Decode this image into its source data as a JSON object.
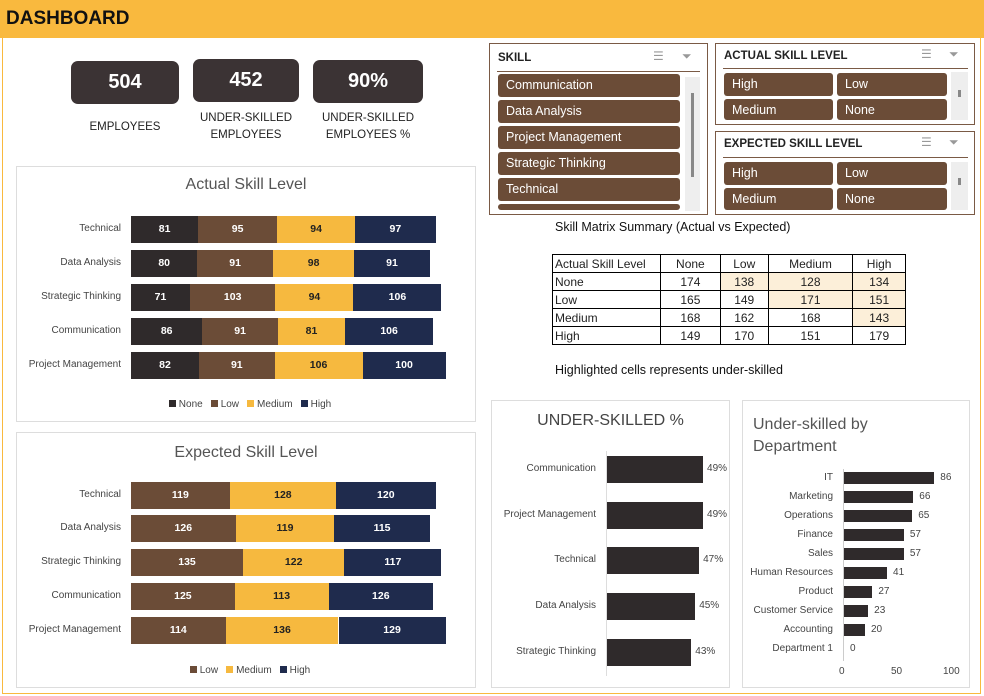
{
  "header": {
    "title": "DASHBOARD"
  },
  "kpis": [
    {
      "value": "504",
      "label": "EMPLOYEES"
    },
    {
      "value": "452",
      "label": "UNDER-SKILLED EMPLOYEES"
    },
    {
      "value": "90%",
      "label": "UNDER-SKILLED EMPLOYEES %"
    }
  ],
  "colors": {
    "None": "#2f2a2b",
    "Low": "#6b4c37",
    "Medium": "#f6b93f",
    "High": "#1f2b4d",
    "accent": "#f9b93e",
    "highlight": "#fcefd9"
  },
  "slicers": {
    "skill": {
      "title": "SKILL",
      "items": [
        "Communication",
        "Data Analysis",
        "Project Management",
        "Strategic Thinking",
        "Technical"
      ]
    },
    "actual": {
      "title": "ACTUAL SKILL LEVEL",
      "items": [
        "High",
        "Low",
        "Medium",
        "None"
      ]
    },
    "expected": {
      "title": "EXPECTED SKILL LEVEL",
      "items": [
        "High",
        "Low",
        "Medium",
        "None"
      ]
    },
    "icons": [
      "multi-select-icon",
      "clear-filter-icon"
    ]
  },
  "matrix": {
    "title": "Skill Matrix Summary (Actual vs Expected)",
    "headers": [
      "Actual Skill Level",
      "None",
      "Low",
      "Medium",
      "High"
    ],
    "rows": [
      [
        "None",
        "174",
        "138",
        "128",
        "134"
      ],
      [
        "Low",
        "165",
        "149",
        "171",
        "151"
      ],
      [
        "Medium",
        "168",
        "162",
        "168",
        "143"
      ],
      [
        "High",
        "149",
        "170",
        "151",
        "179"
      ]
    ],
    "highlighted": [
      [
        0,
        2
      ],
      [
        0,
        3
      ],
      [
        0,
        4
      ],
      [
        1,
        3
      ],
      [
        1,
        4
      ],
      [
        2,
        4
      ]
    ],
    "note": "Highlighted cells represents under-skilled"
  },
  "chart_data": [
    {
      "type": "bar",
      "stacked": true,
      "orientation": "horizontal",
      "title": "Actual Skill Level",
      "categories": [
        "Technical",
        "Data Analysis",
        "Strategic Thinking",
        "Communication",
        "Project Management"
      ],
      "series": [
        {
          "name": "None",
          "values": [
            81,
            80,
            71,
            86,
            82
          ]
        },
        {
          "name": "Low",
          "values": [
            95,
            91,
            103,
            91,
            91
          ]
        },
        {
          "name": "Medium",
          "values": [
            94,
            98,
            94,
            81,
            106
          ]
        },
        {
          "name": "High",
          "values": [
            97,
            91,
            106,
            106,
            100
          ]
        }
      ],
      "legend": "bottom"
    },
    {
      "type": "bar",
      "stacked": true,
      "orientation": "horizontal",
      "title": "Expected Skill Level",
      "categories": [
        "Technical",
        "Data Analysis",
        "Strategic Thinking",
        "Communication",
        "Project Management"
      ],
      "series": [
        {
          "name": "Low",
          "values": [
            119,
            126,
            135,
            125,
            114
          ]
        },
        {
          "name": "Medium",
          "values": [
            128,
            119,
            122,
            113,
            136
          ]
        },
        {
          "name": "High",
          "values": [
            120,
            115,
            117,
            126,
            129
          ]
        }
      ],
      "legend": "bottom"
    },
    {
      "type": "bar",
      "orientation": "horizontal",
      "title": "UNDER-SKILLED %",
      "categories": [
        "Communication",
        "Project Management",
        "Technical",
        "Data Analysis",
        "Strategic Thinking"
      ],
      "values": [
        49,
        49,
        47,
        45,
        43
      ],
      "labels": [
        "49%",
        "49%",
        "47%",
        "45%",
        "43%"
      ]
    },
    {
      "type": "bar",
      "orientation": "horizontal",
      "title": "Under-skilled by Department",
      "categories": [
        "IT",
        "Marketing",
        "Operations",
        "Finance",
        "Sales",
        "Human Resources",
        "Product",
        "Customer Service",
        "Accounting",
        "Department 1"
      ],
      "values": [
        86,
        66,
        65,
        57,
        57,
        41,
        27,
        23,
        20,
        0
      ],
      "xlim": [
        0,
        100
      ],
      "xticks": [
        "0",
        "50",
        "100"
      ]
    }
  ]
}
